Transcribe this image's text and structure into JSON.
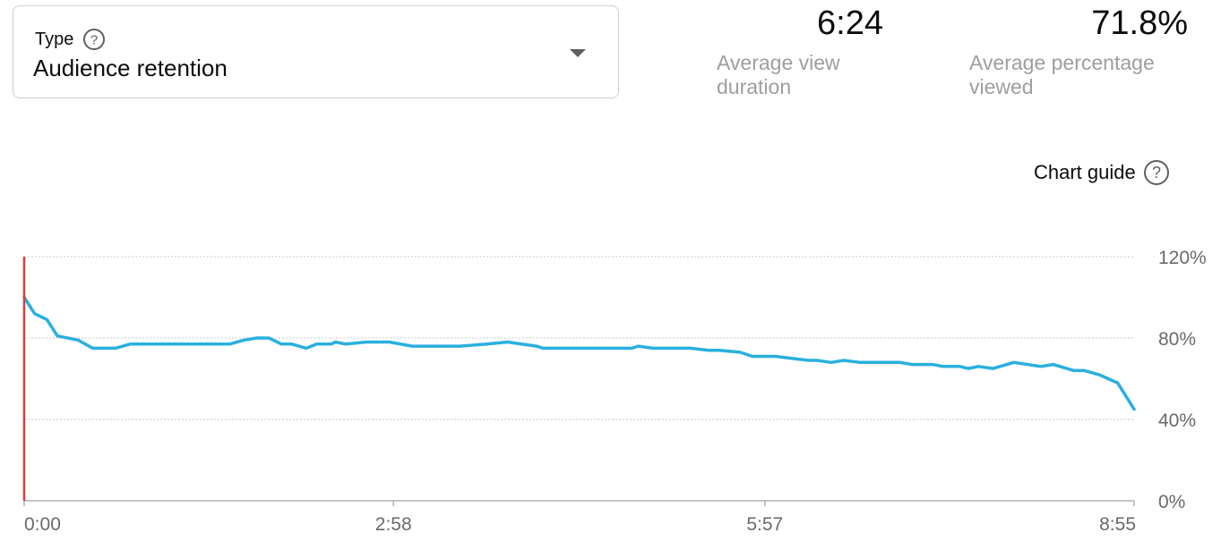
{
  "selector": {
    "label": "Type",
    "value": "Audience retention"
  },
  "metrics": [
    {
      "value": "6:24",
      "label": "Average view duration"
    },
    {
      "value": "71.8%",
      "label": "Average percentage viewed"
    }
  ],
  "chart_guide": {
    "label": "Chart guide"
  },
  "colors": {
    "line": "#29b0de",
    "marker": "#e53935",
    "grid": "#c8c8c8"
  },
  "chart_data": {
    "type": "line",
    "title": "",
    "xlabel": "",
    "ylabel": "",
    "ylim": [
      0,
      120
    ],
    "x_duration_seconds": 535,
    "x_ticks": [
      {
        "t": 0,
        "label": "0:00"
      },
      {
        "t": 178,
        "label": "2:58"
      },
      {
        "t": 357,
        "label": "5:57"
      },
      {
        "t": 535,
        "label": "8:55"
      }
    ],
    "y_ticks": [
      {
        "v": 0,
        "label": "0%"
      },
      {
        "v": 40,
        "label": "40%"
      },
      {
        "v": 80,
        "label": "80%"
      },
      {
        "v": 120,
        "label": "120%"
      }
    ],
    "grid": true,
    "current_position_seconds": 0,
    "series": [
      {
        "x": [
          0,
          5,
          11,
          16,
          26,
          33,
          44,
          51,
          56,
          99,
          106,
          112,
          118,
          124,
          129,
          136,
          141,
          148,
          150,
          155,
          165,
          176,
          187,
          199,
          210,
          223,
          233,
          247,
          250,
          256,
          266,
          280,
          293,
          296,
          303,
          308,
          321,
          330,
          335,
          345,
          351,
          358,
          362,
          378,
          382,
          389,
          395,
          403,
          422,
          428,
          438,
          443,
          451,
          455,
          460,
          467,
          477,
          490,
          496,
          506,
          511,
          518,
          527,
          535
        ],
        "y": [
          100,
          92,
          89,
          81,
          79,
          75,
          75,
          77,
          77,
          77,
          79,
          80,
          80,
          77,
          77,
          75,
          77,
          77,
          78,
          77,
          78,
          78,
          76,
          76,
          76,
          77,
          78,
          76,
          75,
          75,
          75,
          75,
          75,
          76,
          75,
          75,
          75,
          74,
          74,
          73,
          71,
          71,
          71,
          69,
          69,
          68,
          69,
          68,
          68,
          67,
          67,
          66,
          66,
          65,
          66,
          65,
          68,
          66,
          67,
          64,
          64,
          62,
          58,
          45
        ]
      }
    ]
  }
}
